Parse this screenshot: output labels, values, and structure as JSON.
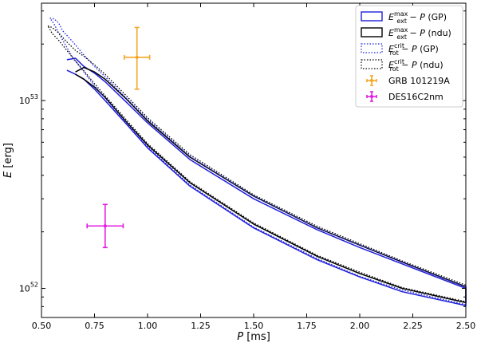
{
  "chart_data": {
    "type": "line",
    "xlabel": "P [ms]",
    "ylabel": "E [erg]",
    "x_ticks": [
      "0.50",
      "0.75",
      "1.00",
      "1.25",
      "1.50",
      "1.75",
      "2.00",
      "2.25",
      "2.50"
    ],
    "xlim": [
      0.5,
      2.5
    ],
    "y_scale": "log",
    "ylim": [
      7e+51,
      3.3e+53
    ],
    "y_ticks": [
      "10^52",
      "10^53"
    ],
    "grid": false,
    "legend_position": "top-right",
    "series": [
      {
        "name": "E_ext^max − P (GP)",
        "legend": {
          "base": "E",
          "sup": "max",
          "sub": "ext",
          "rest": " − P (GP)"
        },
        "color": "#1f1fdc",
        "style": "solid",
        "upper": {
          "x": [
            0.62,
            0.66,
            0.7,
            0.75,
            0.8,
            0.9,
            1.0,
            1.2,
            1.5,
            1.8,
            2.0,
            2.2,
            2.5
          ],
          "y": [
            1.65e+53,
            1.68e+53,
            1.52e+53,
            1.4e+53,
            1.26e+53,
            9.8e+52,
            7.6e+52,
            4.85e+52,
            3e+52,
            2.05e+52,
            1.65e+52,
            1.35e+52,
            1e+52
          ]
        },
        "lower": {
          "x": [
            0.62,
            0.66,
            0.7,
            0.75,
            0.8,
            0.9,
            1.0,
            1.2,
            1.5,
            1.8,
            2.0,
            2.2,
            2.5
          ],
          "y": [
            1.45e+53,
            1.38e+53,
            1.3e+53,
            1.15e+53,
            1e+53,
            7.5e+52,
            5.6e+52,
            3.5e+52,
            2.1e+52,
            1.42e+52,
            1.15e+52,
            9.6e+51,
            8.1e+51
          ]
        }
      },
      {
        "name": "E_ext^max − P (ndu)",
        "legend": {
          "base": "E",
          "sup": "max",
          "sub": "ext",
          "rest": " − P (ndu)"
        },
        "color": "#000000",
        "style": "solid",
        "upper": {
          "x": [
            0.66,
            0.7,
            0.75,
            0.8,
            0.9,
            1.0,
            1.2,
            1.5,
            1.8,
            2.0,
            2.2,
            2.5
          ],
          "y": [
            1.42e+53,
            1.5e+53,
            1.42e+53,
            1.3e+53,
            1.02e+53,
            7.8e+52,
            5e+52,
            3.1e+52,
            2.1e+52,
            1.7e+52,
            1.38e+52,
            1.02e+52
          ]
        },
        "lower": {
          "x": [
            0.66,
            0.7,
            0.75,
            0.8,
            0.9,
            1.0,
            1.2,
            1.5,
            1.8,
            2.0,
            2.2,
            2.5
          ],
          "y": [
            1.38e+53,
            1.3e+53,
            1.18e+53,
            1.04e+53,
            7.7e+52,
            5.8e+52,
            3.65e+52,
            2.2e+52,
            1.48e+52,
            1.2e+52,
            1e+52,
            8.4e+51
          ]
        }
      },
      {
        "name": "E_rot^crit − P (GP)",
        "legend": {
          "base": "E",
          "sup": "crit",
          "sub": "rot",
          "rest": " − P (GP)"
        },
        "color": "#1f1fdc",
        "style": "dotted",
        "upper": {
          "x": [
            0.54,
            0.56,
            0.58,
            0.6,
            0.64,
            0.7,
            0.75,
            0.8,
            0.9,
            1.0,
            1.2,
            1.5,
            1.8,
            2.0,
            2.2,
            2.5
          ],
          "y": [
            2.75e+53,
            2.72e+53,
            2.6e+53,
            2.35e+53,
            2.1e+53,
            1.75e+53,
            1.52e+53,
            1.34e+53,
            1.03e+53,
            7.95e+52,
            5.05e+52,
            3.1e+52,
            2.1e+52,
            1.7e+52,
            1.38e+52,
            1.02e+52
          ]
        },
        "lower": {
          "x": [
            0.54,
            0.56,
            0.58,
            0.6,
            0.64,
            0.7,
            0.75,
            0.8,
            0.9,
            1.0,
            1.2,
            1.5,
            1.8,
            2.0,
            2.2,
            2.5
          ],
          "y": [
            2.75e+53,
            2.55e+53,
            2.3e+53,
            2.1e+53,
            1.75e+53,
            1.42e+53,
            1.2e+53,
            1.03e+53,
            7.6e+52,
            5.7e+52,
            3.55e+52,
            2.12e+52,
            1.44e+52,
            1.16e+52,
            9.8e+51,
            8.2e+51
          ]
        }
      },
      {
        "name": "E_rot^crit − P (ndu)",
        "legend": {
          "base": "E",
          "sup": "crit",
          "sub": "rot",
          "rest": " − P (ndu)"
        },
        "color": "#000000",
        "style": "dotted",
        "upper": {
          "x": [
            0.53,
            0.55,
            0.58,
            0.62,
            0.66,
            0.7,
            0.75,
            0.8,
            0.9,
            1.0,
            1.2,
            1.5,
            1.8,
            2.0,
            2.2,
            2.5
          ],
          "y": [
            2.5e+53,
            2.45e+53,
            2.3e+53,
            2.05e+53,
            1.85e+53,
            1.72e+53,
            1.55e+53,
            1.38e+53,
            1.06e+53,
            8.1e+52,
            5.15e+52,
            3.15e+52,
            2.14e+52,
            1.73e+52,
            1.4e+52,
            1.04e+52
          ]
        },
        "lower": {
          "x": [
            0.53,
            0.55,
            0.58,
            0.62,
            0.66,
            0.7,
            0.75,
            0.8,
            0.9,
            1.0,
            1.2,
            1.5,
            1.8,
            2.0,
            2.2,
            2.5
          ],
          "y": [
            2.5e+53,
            2.28e+53,
            2.1e+53,
            1.85e+53,
            1.62e+53,
            1.44e+53,
            1.23e+53,
            1.06e+53,
            7.9e+52,
            5.9e+52,
            3.7e+52,
            2.23e+52,
            1.5e+52,
            1.22e+52,
            1.01e+52,
            8.5e+51
          ]
        }
      }
    ],
    "error_points": [
      {
        "name": "GRB 101219A",
        "color": "#f5a623",
        "x": 0.95,
        "x_err": 0.06,
        "y": 1.7e+53,
        "y_low": 1.15e+53,
        "y_high": 2.45e+53
      },
      {
        "name": "DES16C2nm",
        "color": "#e31ce3",
        "x": 0.8,
        "x_err": 0.085,
        "y": 2.15e+52,
        "y_low": 1.65e+52,
        "y_high": 2.8e+52
      }
    ]
  }
}
